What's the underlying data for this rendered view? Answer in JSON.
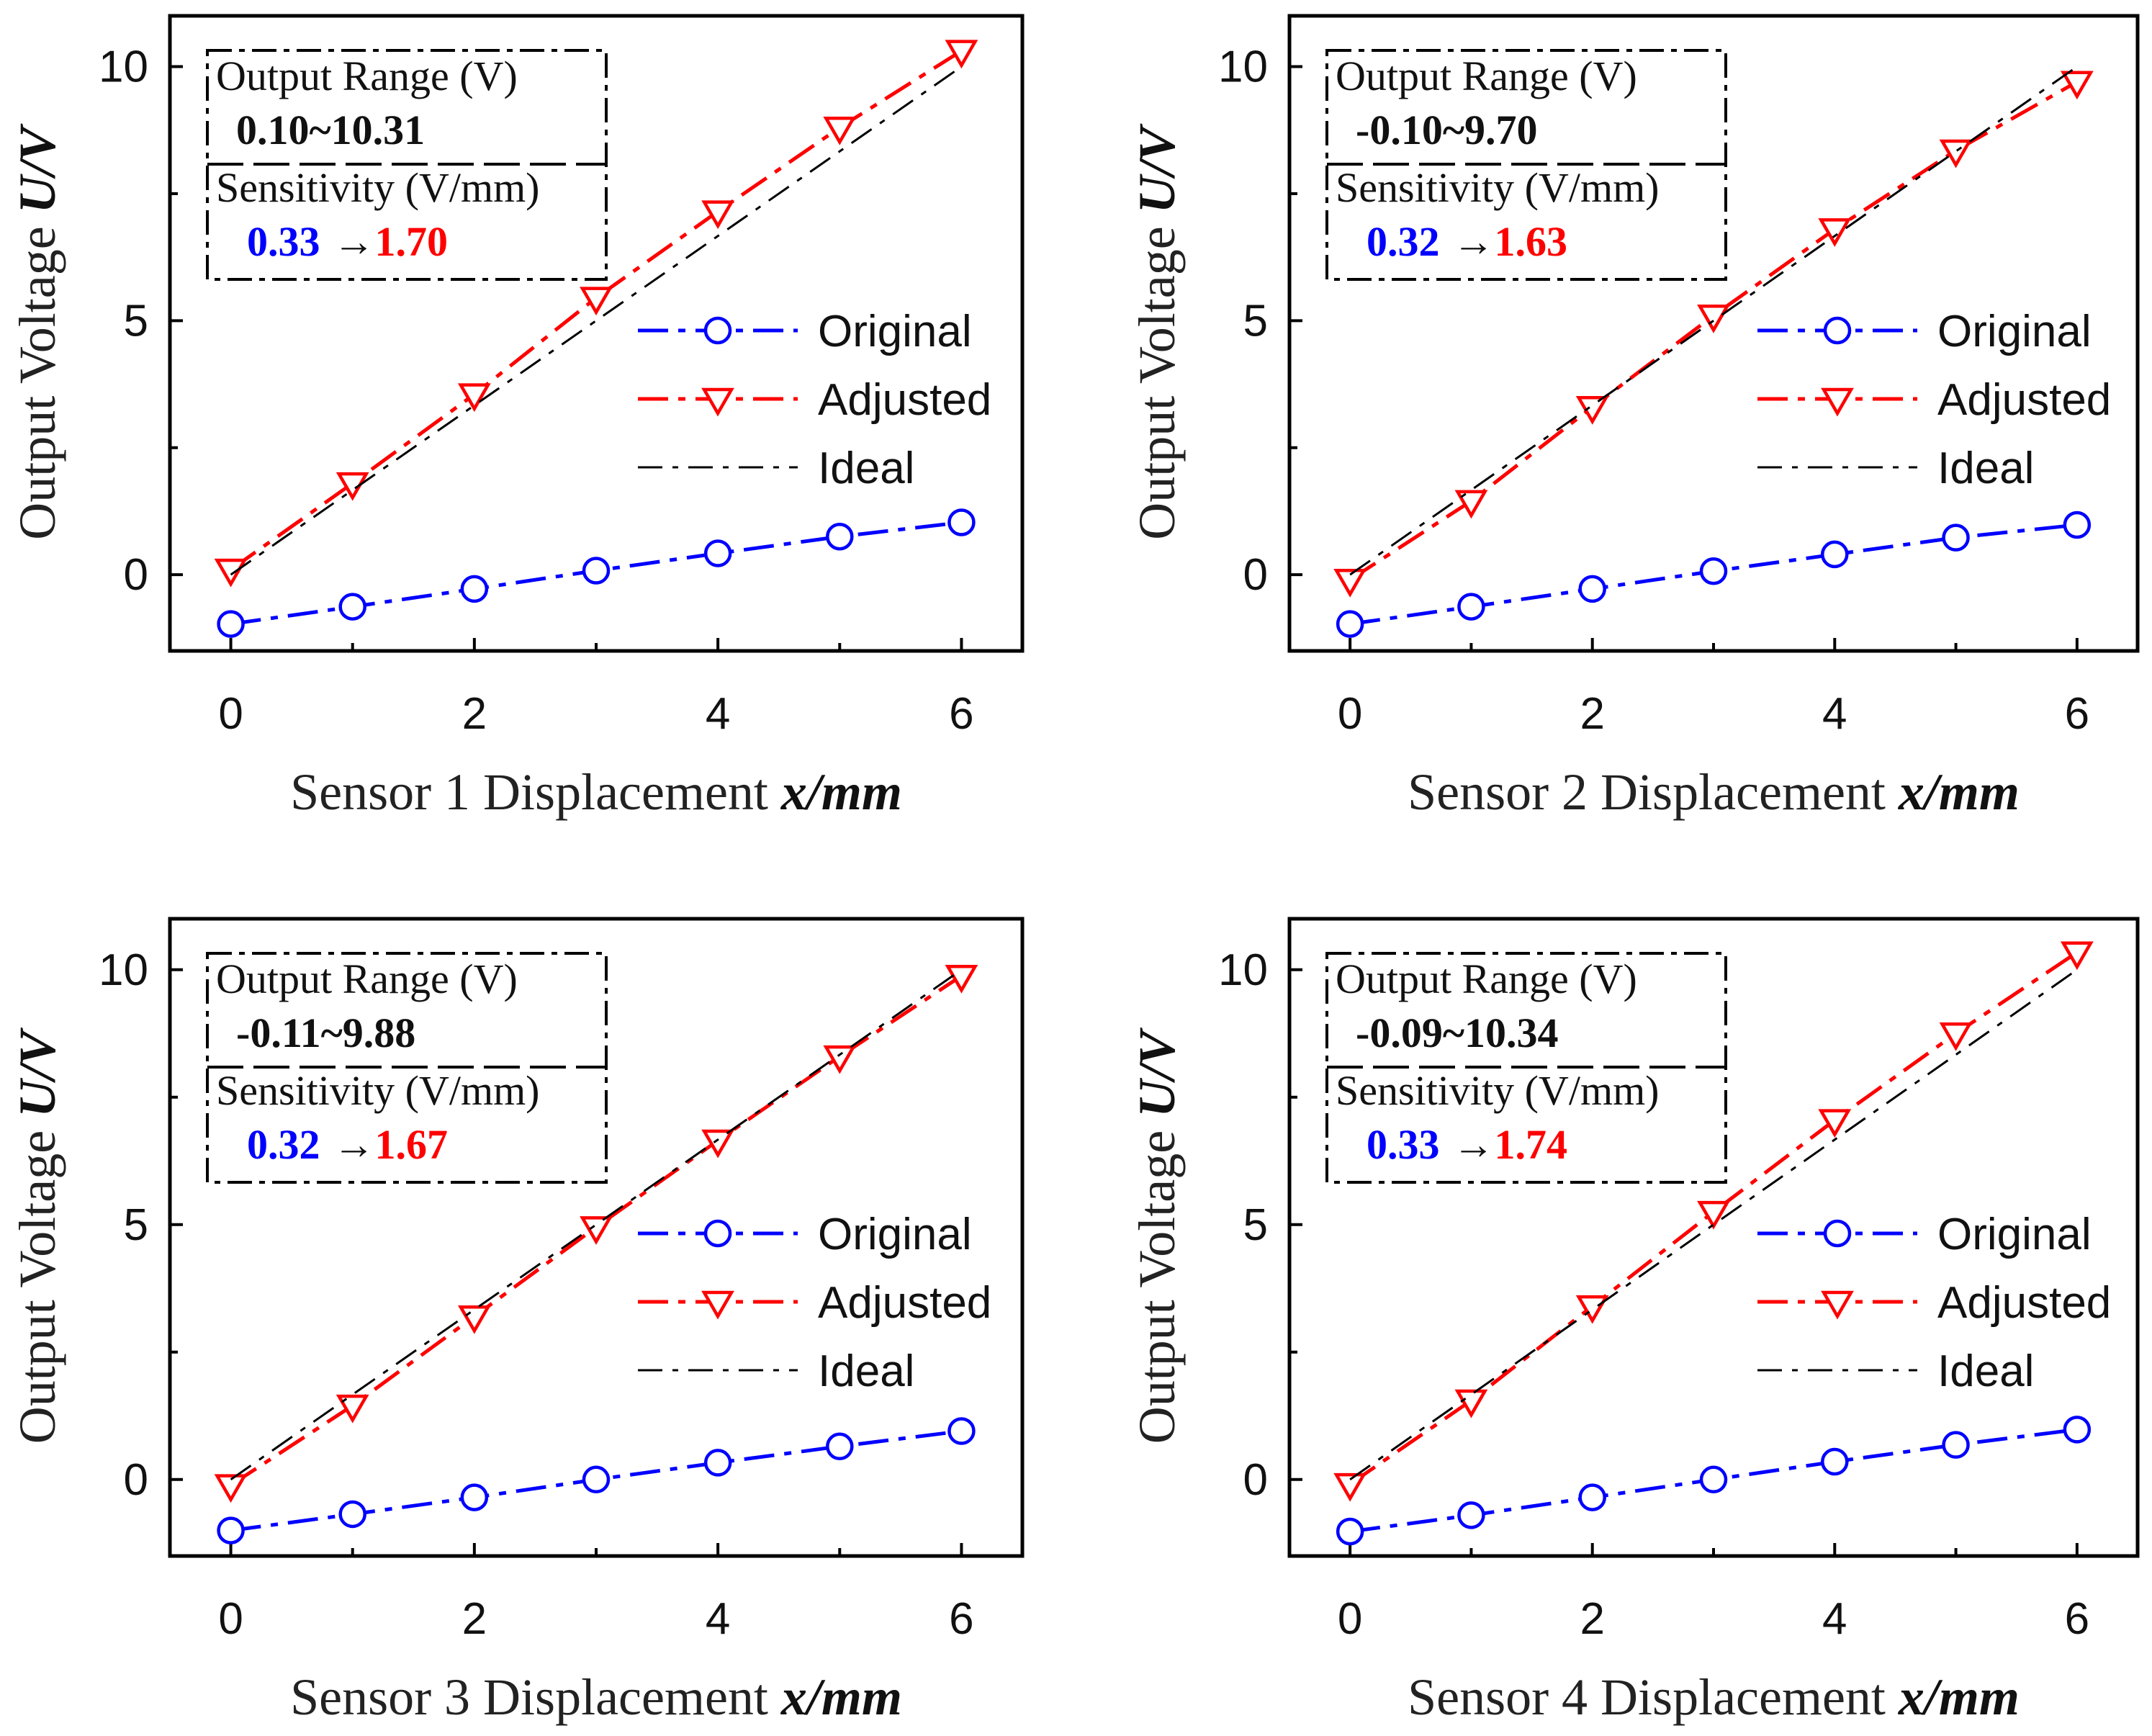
{
  "colors": {
    "original": "#0000ff",
    "adjusted": "#ff0000",
    "ideal": "#000000"
  },
  "legend": {
    "original": "Original",
    "adjusted": "Adjusted",
    "ideal": "Ideal"
  },
  "inset_labels": {
    "range_heading": "Output Range (V)",
    "sensitivity_heading": "Sensitivity (V/mm)",
    "arrow": "→"
  },
  "axis_labels": {
    "ylabel_text": "Output Voltage ",
    "ylabel_unit": "U/V",
    "xlabel_unit": "x/mm"
  },
  "chart_data": [
    {
      "type": "line",
      "xlabel": "Sensor 1 Displacement ",
      "x": [
        0,
        1,
        2,
        3,
        4,
        5,
        6
      ],
      "xticks": [
        0,
        2,
        4,
        6
      ],
      "yticks": [
        0,
        5,
        10
      ],
      "xlim": [
        -0.5,
        6.5
      ],
      "ylim": [
        -1.5,
        11
      ],
      "range_text": "0.10~10.31",
      "sens_original": "0.33",
      "sens_adjusted": "1.70",
      "series": [
        {
          "name": "Original",
          "values": [
            -0.97,
            -0.63,
            -0.28,
            0.08,
            0.42,
            0.75,
            1.03
          ]
        },
        {
          "name": "Adjusted",
          "values": [
            0.1,
            1.8,
            3.55,
            5.45,
            7.15,
            8.8,
            10.31
          ]
        },
        {
          "name": "Ideal",
          "values": [
            0,
            1.667,
            3.333,
            5.0,
            6.667,
            8.333,
            10.0
          ]
        }
      ]
    },
    {
      "type": "line",
      "xlabel": "Sensor 2 Displacement ",
      "x": [
        0,
        1,
        2,
        3,
        4,
        5,
        6
      ],
      "xticks": [
        0,
        2,
        4,
        6
      ],
      "yticks": [
        0,
        5,
        10
      ],
      "xlim": [
        -0.5,
        6.5
      ],
      "ylim": [
        -1.5,
        11
      ],
      "range_text": "-0.10~9.70",
      "sens_original": "0.32",
      "sens_adjusted": "1.63",
      "series": [
        {
          "name": "Original",
          "values": [
            -0.97,
            -0.63,
            -0.28,
            0.07,
            0.4,
            0.73,
            0.98
          ]
        },
        {
          "name": "Adjusted",
          "values": [
            -0.1,
            1.45,
            3.3,
            5.1,
            6.8,
            8.35,
            9.7
          ]
        },
        {
          "name": "Ideal",
          "values": [
            0,
            1.667,
            3.333,
            5.0,
            6.667,
            8.333,
            10.0
          ]
        }
      ]
    },
    {
      "type": "line",
      "xlabel": "Sensor 3 Displacement ",
      "x": [
        0,
        1,
        2,
        3,
        4,
        5,
        6
      ],
      "xticks": [
        0,
        2,
        4,
        6
      ],
      "yticks": [
        0,
        5,
        10
      ],
      "xlim": [
        -0.5,
        6.5
      ],
      "ylim": [
        -1.5,
        11
      ],
      "range_text": "-0.11~9.88",
      "sens_original": "0.32",
      "sens_adjusted": "1.67",
      "series": [
        {
          "name": "Original",
          "values": [
            -1.0,
            -0.68,
            -0.35,
            0.0,
            0.33,
            0.65,
            0.95
          ]
        },
        {
          "name": "Adjusted",
          "values": [
            -0.11,
            1.45,
            3.2,
            4.95,
            6.65,
            8.3,
            9.88
          ]
        },
        {
          "name": "Ideal",
          "values": [
            0,
            1.667,
            3.333,
            5.0,
            6.667,
            8.333,
            10.0
          ]
        }
      ]
    },
    {
      "type": "line",
      "xlabel": "Sensor 4 Displacement ",
      "x": [
        0,
        1,
        2,
        3,
        4,
        5,
        6
      ],
      "xticks": [
        0,
        2,
        4,
        6
      ],
      "yticks": [
        0,
        5,
        10
      ],
      "xlim": [
        -0.5,
        6.5
      ],
      "ylim": [
        -1.5,
        11
      ],
      "range_text": "-0.09~10.34",
      "sens_original": "0.33",
      "sens_adjusted": "1.74",
      "series": [
        {
          "name": "Original",
          "values": [
            -1.02,
            -0.7,
            -0.35,
            0.0,
            0.35,
            0.68,
            0.98
          ]
        },
        {
          "name": "Adjusted",
          "values": [
            -0.09,
            1.55,
            3.4,
            5.25,
            7.05,
            8.75,
            10.34
          ]
        },
        {
          "name": "Ideal",
          "values": [
            0,
            1.667,
            3.333,
            5.0,
            6.667,
            8.333,
            10.0
          ]
        }
      ]
    }
  ]
}
